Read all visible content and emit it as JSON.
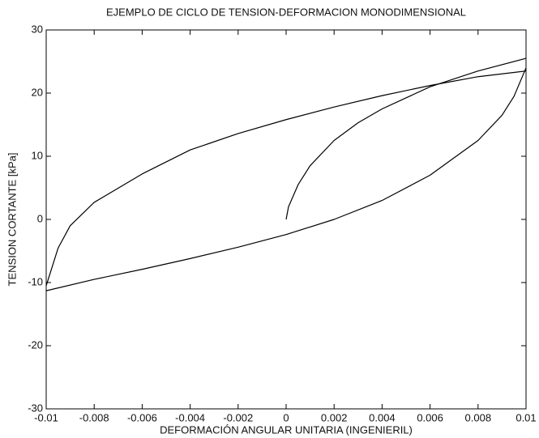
{
  "chart_data": {
    "type": "line",
    "title": "EJEMPLO DE CICLO DE TENSION-DEFORMACION MONODIMENSIONAL",
    "xlabel": "DEFORMACIÓN ANGULAR UNITARIA (INGENIERIL)",
    "ylabel": "TENSION CORTANTE [kPa]",
    "xlim": [
      -0.01,
      0.01
    ],
    "xticks": [
      -0.01,
      -0.008,
      -0.006,
      -0.004,
      -0.002,
      0,
      0.002,
      0.004,
      0.006,
      0.008,
      0.01
    ],
    "ylim": [
      -30,
      30
    ],
    "yticks": [
      -30,
      -20,
      -10,
      0,
      10,
      20,
      30
    ],
    "series": [
      {
        "color": "#000000",
        "x": [
          0,
          0.0001,
          0.0005,
          0.001,
          0.002,
          0.003,
          0.004,
          0.006,
          0.008,
          0.01
        ],
        "values": [
          0,
          2,
          5.5,
          8.5,
          12.5,
          15.3,
          17.5,
          21,
          23.5,
          25.5
        ]
      },
      {
        "color": "#000000",
        "x": [
          0.01,
          0.008,
          0.006,
          0.004,
          0.002,
          0,
          -0.002,
          -0.004,
          -0.006,
          -0.008,
          -0.009,
          -0.0095,
          -0.01
        ],
        "values": [
          23.5,
          22.6,
          21.2,
          19.6,
          17.8,
          15.8,
          13.6,
          11,
          7.2,
          2.7,
          -1,
          -4.5,
          -10.5
        ]
      },
      {
        "color": "#000000",
        "x": [
          -0.01,
          -0.008,
          -0.006,
          -0.004,
          -0.002,
          0,
          0.002,
          0.004,
          0.006,
          0.008,
          0.009,
          0.0095,
          0.01
        ],
        "values": [
          -11.3,
          -9.5,
          -7.9,
          -6.2,
          -4.4,
          -2.4,
          0,
          3,
          7,
          12.5,
          16.5,
          19.5,
          24
        ]
      }
    ]
  }
}
